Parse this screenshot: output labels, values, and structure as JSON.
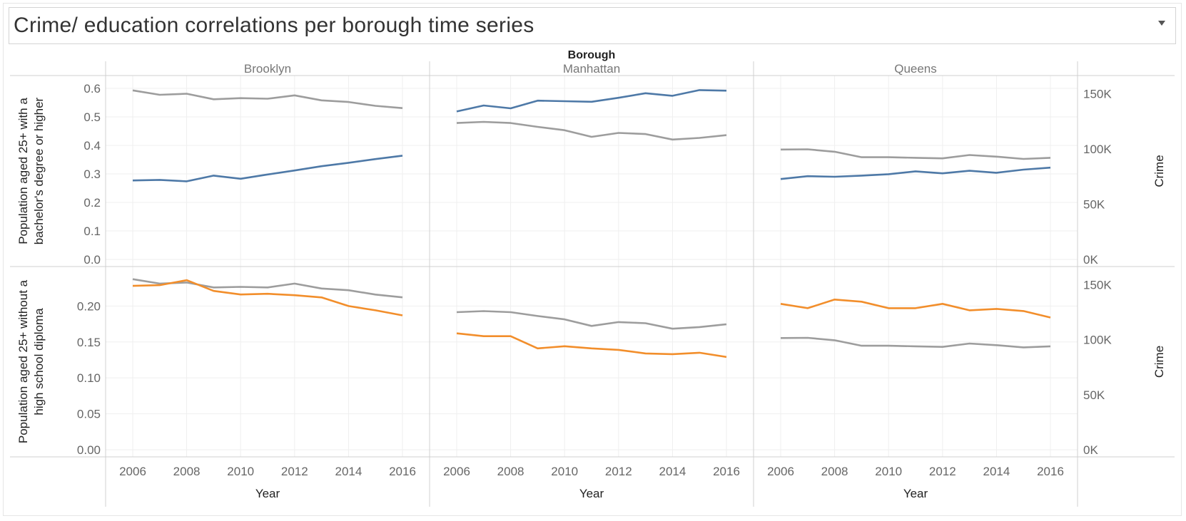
{
  "title": "Crime/ education correlations per borough time series",
  "colors": {
    "bachelor": "#4e79a7",
    "no_diploma": "#f28e2b",
    "crime": "#9d9d9d",
    "grid": "#efefef",
    "divider": "#d0d0d0"
  },
  "chart_data": {
    "type": "line",
    "column_header": "Borough",
    "boroughs": [
      "Brooklyn",
      "Manhattan",
      "Queens"
    ],
    "x": [
      2006,
      2007,
      2008,
      2009,
      2010,
      2011,
      2012,
      2013,
      2014,
      2015,
      2016
    ],
    "x_ticks": [
      "2006",
      "2008",
      "2010",
      "2012",
      "2014",
      "2016"
    ],
    "xlabel": "Year",
    "y2label": "Crime",
    "rows": [
      {
        "ylabel": "Population aged 25+ with a bachelor's degree or higher",
        "ylim": [
          0,
          0.62
        ],
        "y_ticks": [
          "0.0",
          "0.1",
          "0.2",
          "0.3",
          "0.4",
          "0.5",
          "0.6"
        ],
        "y_tick_values": [
          0,
          0.1,
          0.2,
          0.3,
          0.4,
          0.5,
          0.6
        ],
        "y2lim": [
          0,
          160000
        ],
        "y2_ticks": [
          "0K",
          "50K",
          "100K",
          "150K"
        ],
        "y2_tick_values": [
          0,
          50000,
          100000,
          150000
        ],
        "series_color_key": "bachelor",
        "education": {
          "Brooklyn": [
            0.277,
            0.279,
            0.274,
            0.294,
            0.283,
            0.298,
            0.312,
            0.327,
            0.339,
            0.352,
            0.364
          ],
          "Manhattan": [
            0.519,
            0.54,
            0.53,
            0.557,
            0.555,
            0.553,
            0.567,
            0.583,
            0.574,
            0.594,
            0.592
          ],
          "Queens": [
            0.282,
            0.292,
            0.29,
            0.294,
            0.299,
            0.309,
            0.302,
            0.311,
            0.304,
            0.315,
            0.322
          ]
        },
        "crime": {
          "Brooklyn": [
            153000,
            149000,
            150000,
            145000,
            146000,
            145500,
            148500,
            144000,
            142500,
            139000,
            137000
          ],
          "Manhattan": [
            123500,
            124500,
            123500,
            120000,
            117000,
            111000,
            114500,
            113500,
            108500,
            110000,
            112500
          ],
          "Queens": [
            99500,
            99700,
            97500,
            92500,
            92500,
            92000,
            91500,
            94500,
            93000,
            91000,
            92000
          ]
        }
      },
      {
        "ylabel": "Population aged 25+ without a high school diploma",
        "ylim": [
          0,
          0.245
        ],
        "y_ticks": [
          "0.00",
          "0.05",
          "0.10",
          "0.15",
          "0.20"
        ],
        "y_tick_values": [
          0,
          0.05,
          0.1,
          0.15,
          0.2
        ],
        "y2lim": [
          0,
          160000
        ],
        "y2_ticks": [
          "0K",
          "50K",
          "100K",
          "150K"
        ],
        "y2_tick_values": [
          0,
          50000,
          100000,
          150000
        ],
        "series_color_key": "no_diploma",
        "education": {
          "Brooklyn": [
            0.228,
            0.229,
            0.236,
            0.221,
            0.216,
            0.217,
            0.215,
            0.212,
            0.2,
            0.194,
            0.187
          ],
          "Manhattan": [
            0.162,
            0.158,
            0.158,
            0.141,
            0.144,
            0.141,
            0.139,
            0.134,
            0.133,
            0.135,
            0.129
          ],
          "Queens": [
            0.203,
            0.197,
            0.209,
            0.206,
            0.197,
            0.197,
            0.203,
            0.194,
            0.196,
            0.193,
            0.184
          ]
        },
        "crime": {
          "Brooklyn": [
            155000,
            151000,
            152000,
            147500,
            148000,
            147500,
            151000,
            146500,
            145000,
            141000,
            138500
          ],
          "Manhattan": [
            125000,
            126000,
            125000,
            121500,
            118500,
            112500,
            116000,
            115000,
            110000,
            111500,
            114000
          ],
          "Queens": [
            101500,
            101700,
            99500,
            94500,
            94500,
            94000,
            93500,
            96500,
            95000,
            93000,
            94000
          ]
        }
      }
    ]
  }
}
